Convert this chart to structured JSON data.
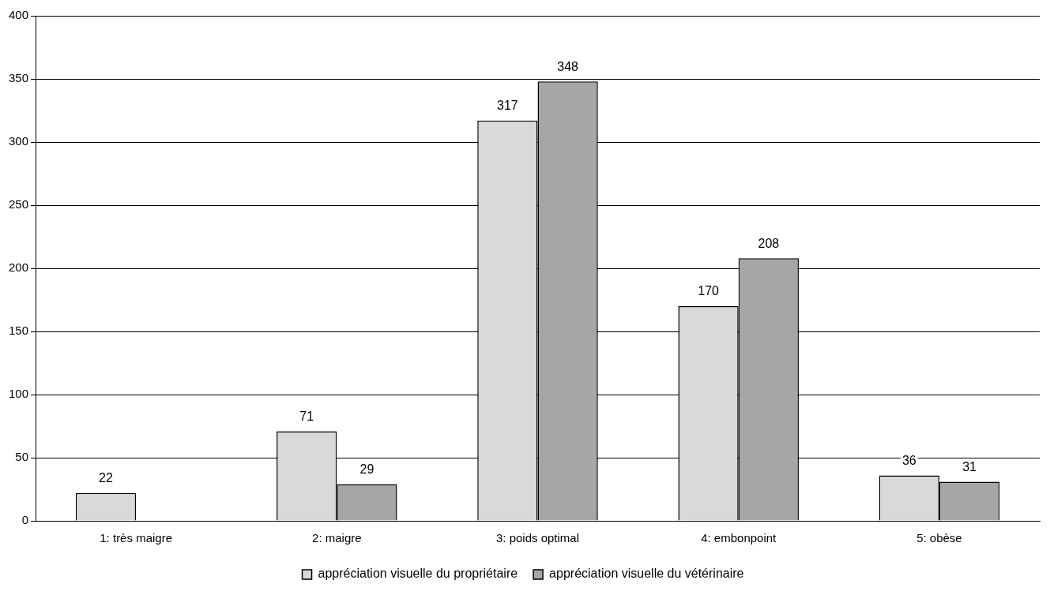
{
  "chart_data": {
    "type": "bar",
    "categories": [
      "1: très maigre",
      "2: maigre",
      "3: poids optimal",
      "4: embonpoint",
      "5: obèse"
    ],
    "series": [
      {
        "name": "appréciation visuelle du propriétaire",
        "color": "#d9d9d9",
        "values": [
          22,
          71,
          317,
          170,
          36
        ]
      },
      {
        "name": "appréciation visuelle du vétérinaire",
        "color": "#a6a6a6",
        "values": [
          null,
          29,
          348,
          208,
          31
        ]
      }
    ],
    "ylim": [
      0,
      400
    ],
    "yticks": [
      0,
      50,
      100,
      150,
      200,
      250,
      300,
      350,
      400
    ],
    "grid": "y",
    "legend": "bottom",
    "data_labels": true
  }
}
